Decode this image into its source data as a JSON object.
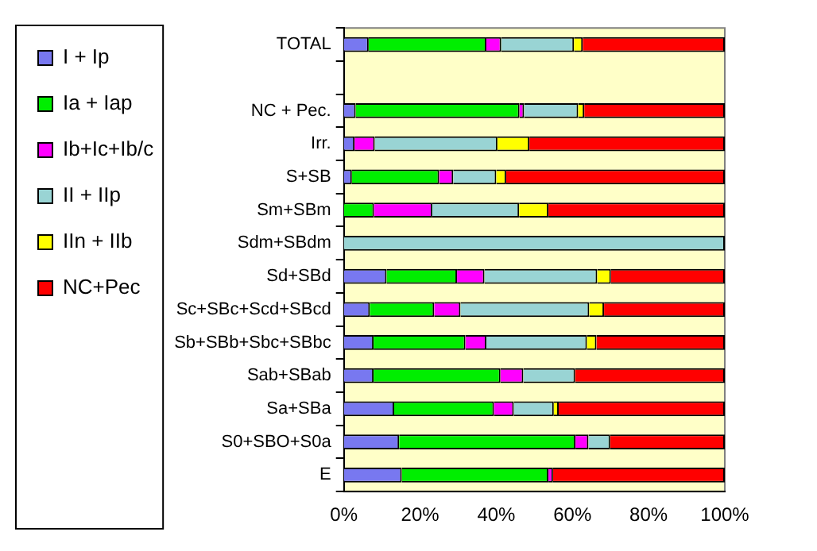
{
  "chart_data": {
    "type": "bar",
    "orientation": "horizontal",
    "stacked": true,
    "categories": [
      "TOTAL",
      null,
      "NC + Pec.",
      "Irr.",
      "S+SB",
      "Sm+SBm",
      "Sdm+SBdm",
      "Sd+SBd",
      "Sc+SBc+Scd+SBcd",
      "Sb+SBb+Sbc+SBbc",
      "Sab+SBab",
      "Sa+SBa",
      "S0+SBO+S0a",
      "E"
    ],
    "series": [
      {
        "name": "I + Ip",
        "color": "#7878f0",
        "values": [
          6.5,
          null,
          3.1,
          2.8,
          2.1,
          0,
          0,
          11.2,
          6.8,
          7.8,
          7.8,
          13.2,
          14.5,
          15.2
        ]
      },
      {
        "name": "Ia + Iap",
        "color": "#00ee00",
        "values": [
          30.9,
          null,
          43,
          0,
          22.9,
          7.9,
          0,
          18.5,
          16.9,
          24.1,
          33.3,
          26.2,
          46.3,
          38.5
        ]
      },
      {
        "name": "Ib+Ic+Ib/c",
        "color": "#ff00ff",
        "values": [
          3.9,
          null,
          1.2,
          5.3,
          3.7,
          15.3,
          0,
          7.2,
          6.9,
          5.5,
          6,
          5.2,
          3.4,
          1.2
        ]
      },
      {
        "name": "II + IIp",
        "color": "#99d4d4",
        "values": [
          19.1,
          null,
          14.2,
          32.2,
          11.3,
          22.8,
          100,
          29.6,
          33.8,
          26.4,
          13.6,
          10.5,
          5.7,
          0
        ]
      },
      {
        "name": "IIn + IIb",
        "color": "#ffff00",
        "values": [
          2.3,
          null,
          1.6,
          8.4,
          2.6,
          7.7,
          0,
          3.6,
          3.9,
          2.5,
          0,
          1.3,
          0,
          0
        ]
      },
      {
        "name": "NC+Pec",
        "color": "#ff0000",
        "values": [
          37.3,
          null,
          36.9,
          51.3,
          57.4,
          46.3,
          0,
          29.9,
          31.7,
          33.7,
          39.3,
          43.6,
          30.1,
          45.1
        ]
      }
    ],
    "xlim": [
      0,
      100
    ],
    "xticks": [
      {
        "value": 0,
        "label": "0%"
      },
      {
        "value": 20,
        "label": "20%"
      },
      {
        "value": 40,
        "label": "40%"
      },
      {
        "value": 60,
        "label": "60%"
      },
      {
        "value": 80,
        "label": "80%"
      },
      {
        "value": 100,
        "label": "100%"
      }
    ],
    "grid": false,
    "legend": "left"
  }
}
